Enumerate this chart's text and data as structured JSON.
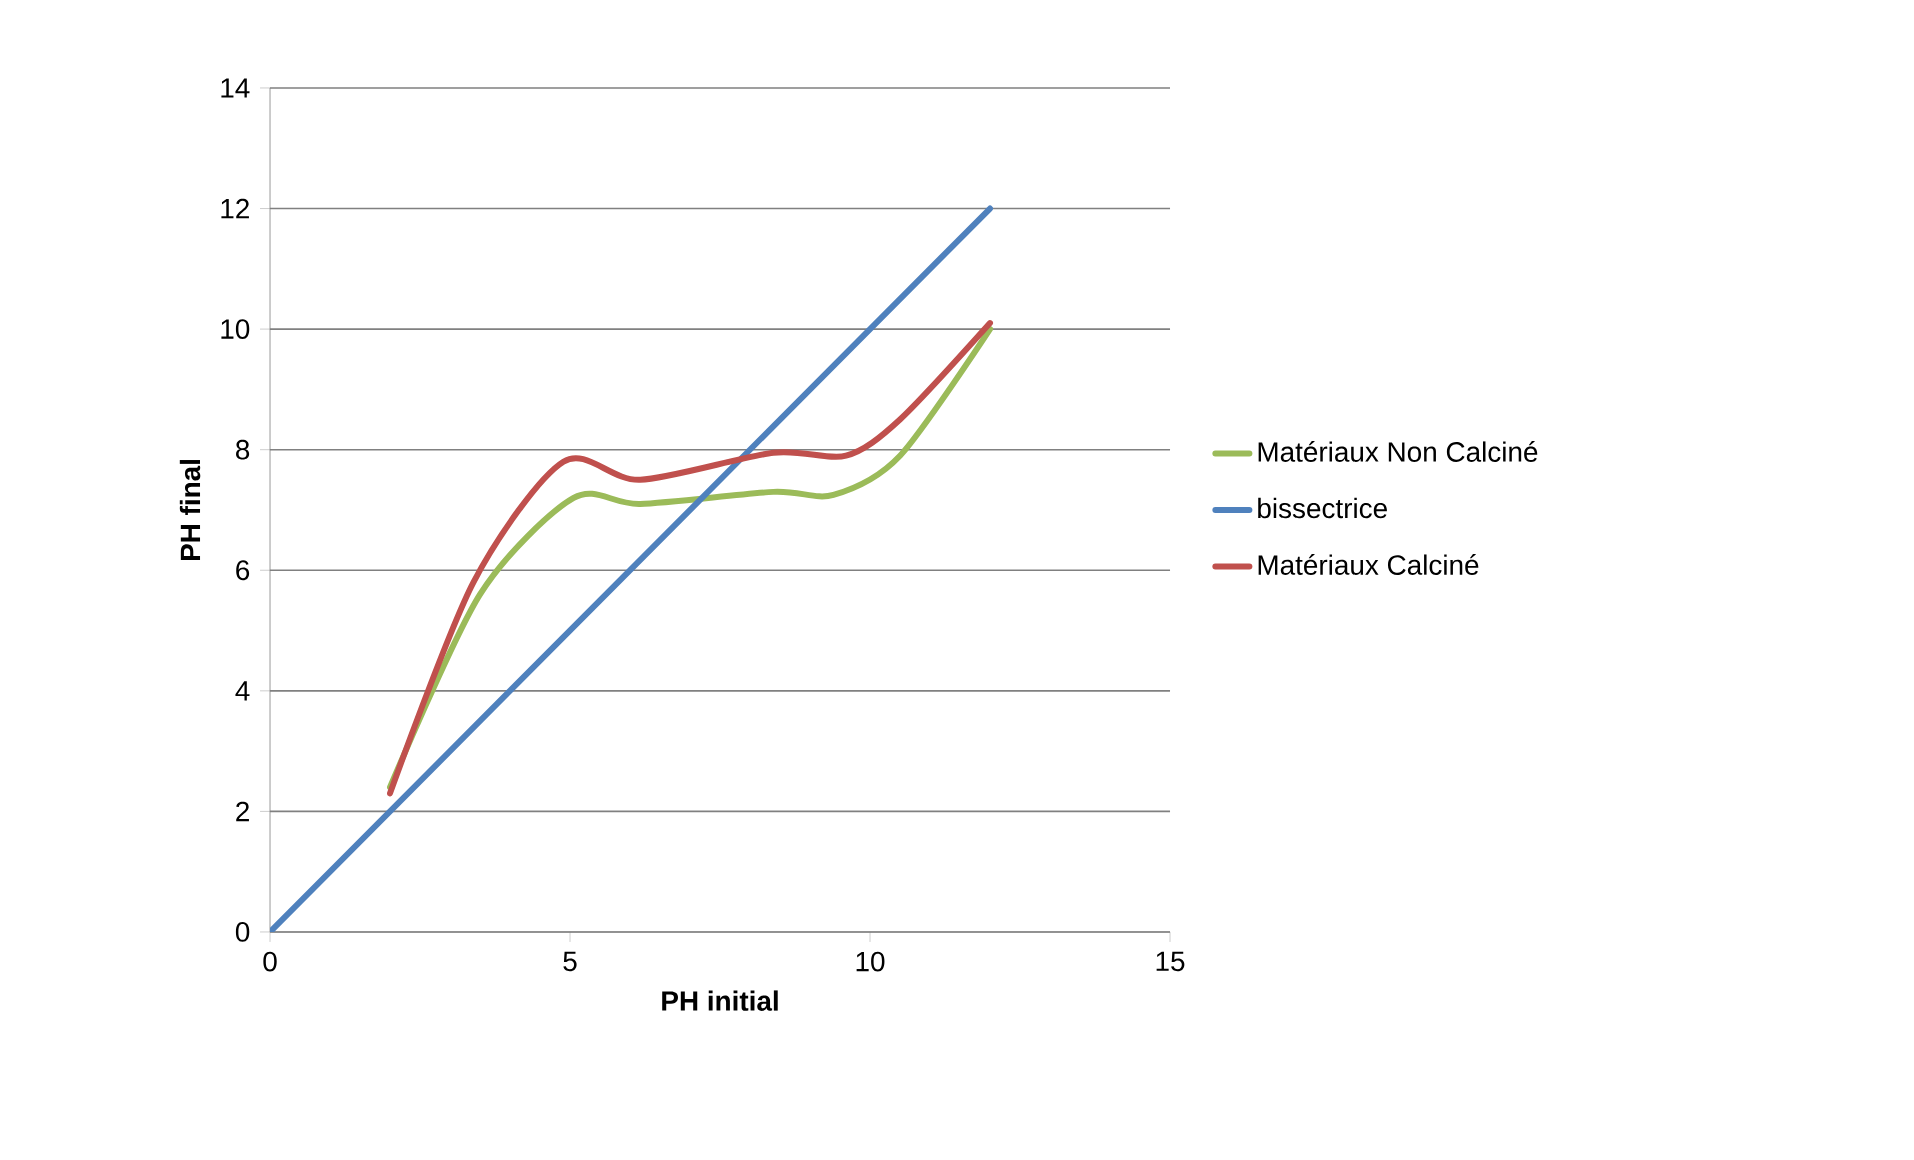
{
  "chart_data": {
    "type": "line",
    "xlabel": "PH initial",
    "ylabel": "PH final",
    "xlim": [
      0,
      15
    ],
    "xticks": [
      0,
      5,
      10,
      15
    ],
    "ylim": [
      0,
      14
    ],
    "yticks": [
      0,
      2,
      4,
      6,
      8,
      10,
      12,
      14
    ],
    "grid": "y",
    "legend": "right",
    "marker": "none",
    "line_style": "solid",
    "series": [
      {
        "name": "Matériaux Non Calciné",
        "color": "#9bbb59",
        "x": [
          2,
          3.5,
          5.06,
          6.17,
          8.39,
          9.39,
          10.5,
          12
        ],
        "values": [
          2.4,
          5.6,
          7.2,
          7.1,
          7.3,
          7.25,
          7.9,
          10
        ]
      },
      {
        "name": "bissectrice",
        "color": "#4f81bd",
        "x": [
          0,
          12
        ],
        "values": [
          0,
          12
        ]
      },
      {
        "name": "Matériaux  Calciné",
        "color": "#c0504d",
        "x": [
          2,
          3.39,
          4.89,
          6.17,
          8.39,
          9.6,
          10.5,
          12
        ],
        "values": [
          2.3,
          5.8,
          7.8,
          7.5,
          7.95,
          7.9,
          8.5,
          10.1
        ]
      }
    ]
  }
}
